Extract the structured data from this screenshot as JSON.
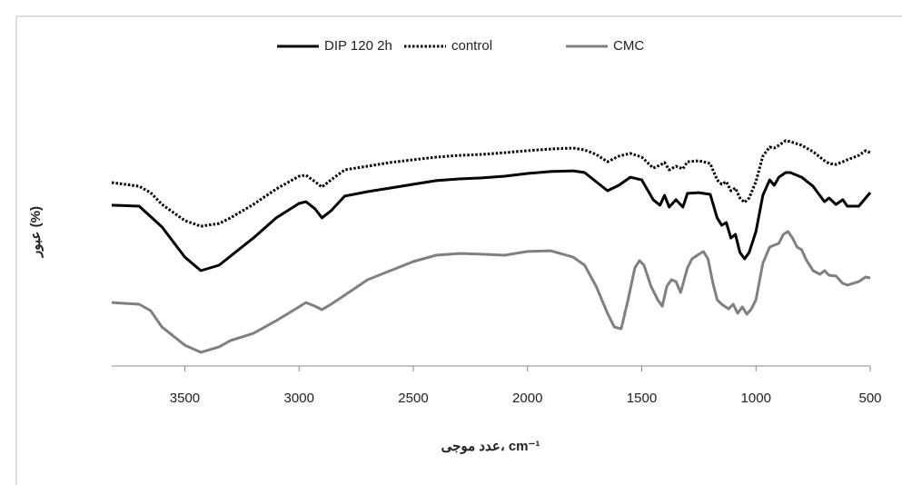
{
  "chart_data": {
    "type": "line",
    "x_label": "عدد موجی، cm⁻¹",
    "y_label": "عبور (%)",
    "xlim": [
      3820,
      500
    ],
    "xticks": [
      3500,
      3000,
      2500,
      2000,
      1500,
      1000,
      500
    ],
    "ylim": [
      0,
      100
    ],
    "legend": "top",
    "series": [
      {
        "name": "DIP 120 2h",
        "color": "#000000",
        "style": "solid",
        "x": [
          3820,
          3700,
          3600,
          3500,
          3430,
          3350,
          3300,
          3200,
          3100,
          3000,
          2970,
          2930,
          2900,
          2860,
          2800,
          2700,
          2600,
          2500,
          2400,
          2300,
          2200,
          2100,
          2000,
          1900,
          1800,
          1750,
          1700,
          1650,
          1600,
          1550,
          1500,
          1450,
          1420,
          1400,
          1380,
          1350,
          1320,
          1300,
          1250,
          1200,
          1170,
          1150,
          1130,
          1110,
          1090,
          1070,
          1050,
          1030,
          1000,
          970,
          940,
          920,
          900,
          870,
          850,
          800,
          750,
          700,
          680,
          650,
          620,
          600,
          550,
          520,
          500
        ],
        "values": [
          65.6,
          65.2,
          56.7,
          44.4,
          38.9,
          41.1,
          44.8,
          52.2,
          60.4,
          66.3,
          67.0,
          64.1,
          60.4,
          63.3,
          69.3,
          71.1,
          72.6,
          74.1,
          75.6,
          76.3,
          76.7,
          77.4,
          78.5,
          79.3,
          79.6,
          78.9,
          75.2,
          71.5,
          73.7,
          77.0,
          75.9,
          67.8,
          65.6,
          69.6,
          64.8,
          67.8,
          64.8,
          70.4,
          70.7,
          70.0,
          60.4,
          57.4,
          58.5,
          52.2,
          53.7,
          46.3,
          43.7,
          46.3,
          54.8,
          69.6,
          75.9,
          73.7,
          77.0,
          78.9,
          78.9,
          77.0,
          73.3,
          67.0,
          68.5,
          65.9,
          67.8,
          65.2,
          65.2,
          68.5,
          70.7
        ]
      },
      {
        "name": "control",
        "color": "#000000",
        "style": "dotted",
        "x": [
          3820,
          3700,
          3650,
          3600,
          3500,
          3430,
          3350,
          3300,
          3200,
          3100,
          3000,
          2970,
          2930,
          2900,
          2860,
          2800,
          2700,
          2600,
          2500,
          2400,
          2300,
          2200,
          2100,
          2000,
          1900,
          1800,
          1750,
          1700,
          1650,
          1600,
          1550,
          1500,
          1450,
          1420,
          1400,
          1380,
          1350,
          1320,
          1300,
          1250,
          1200,
          1170,
          1150,
          1130,
          1110,
          1090,
          1070,
          1050,
          1030,
          1000,
          970,
          940,
          920,
          900,
          870,
          850,
          800,
          750,
          700,
          680,
          650,
          620,
          600,
          550,
          520,
          500
        ],
        "values": [
          74.8,
          73.3,
          70.7,
          65.9,
          59.3,
          57.0,
          58.1,
          60.4,
          65.9,
          72.2,
          77.4,
          77.8,
          75.2,
          73.0,
          75.9,
          80.0,
          81.5,
          83.0,
          84.1,
          85.2,
          85.9,
          86.3,
          87.0,
          87.8,
          88.5,
          88.9,
          88.1,
          86.3,
          83.3,
          85.6,
          86.7,
          85.2,
          80.7,
          81.9,
          83.0,
          80.0,
          81.5,
          80.4,
          83.3,
          83.7,
          82.6,
          75.9,
          74.1,
          75.2,
          71.5,
          72.6,
          68.5,
          66.7,
          68.5,
          75.2,
          85.6,
          89.3,
          88.9,
          90.0,
          91.9,
          91.5,
          90.0,
          87.4,
          83.7,
          82.6,
          82.2,
          83.3,
          84.1,
          85.9,
          87.8,
          87.0
        ]
      },
      {
        "name": "CMC",
        "color": "#808080",
        "style": "solid",
        "x": [
          3820,
          3700,
          3650,
          3600,
          3500,
          3430,
          3350,
          3300,
          3200,
          3100,
          3000,
          2970,
          2930,
          2900,
          2860,
          2800,
          2700,
          2600,
          2500,
          2400,
          2300,
          2200,
          2100,
          2000,
          1900,
          1800,
          1750,
          1700,
          1650,
          1620,
          1590,
          1560,
          1530,
          1510,
          1490,
          1460,
          1430,
          1410,
          1390,
          1370,
          1350,
          1330,
          1300,
          1280,
          1250,
          1230,
          1210,
          1190,
          1170,
          1150,
          1120,
          1100,
          1080,
          1060,
          1040,
          1020,
          1000,
          970,
          940,
          920,
          900,
          880,
          860,
          840,
          820,
          800,
          780,
          750,
          720,
          700,
          680,
          650,
          620,
          600,
          550,
          520,
          500
        ],
        "values": [
          25.9,
          25.2,
          22.6,
          15.9,
          8.5,
          5.6,
          7.8,
          10.4,
          13.3,
          18.5,
          24.1,
          25.9,
          24.4,
          23.0,
          25.2,
          28.9,
          35.2,
          38.9,
          42.6,
          45.2,
          45.9,
          45.6,
          45.2,
          46.7,
          47.0,
          44.4,
          41.1,
          32.6,
          21.5,
          15.9,
          15.2,
          27.0,
          40.0,
          43.0,
          41.1,
          32.6,
          27.0,
          24.4,
          32.6,
          35.2,
          34.4,
          30.0,
          40.0,
          43.7,
          45.6,
          46.7,
          43.7,
          34.4,
          27.0,
          25.2,
          23.3,
          25.2,
          21.5,
          24.1,
          21.1,
          23.3,
          27.0,
          41.9,
          48.5,
          49.3,
          50.0,
          53.7,
          54.8,
          52.2,
          48.5,
          47.4,
          43.3,
          38.9,
          37.4,
          38.9,
          37.0,
          36.7,
          33.7,
          33.0,
          34.4,
          36.3,
          35.9
        ]
      }
    ]
  }
}
